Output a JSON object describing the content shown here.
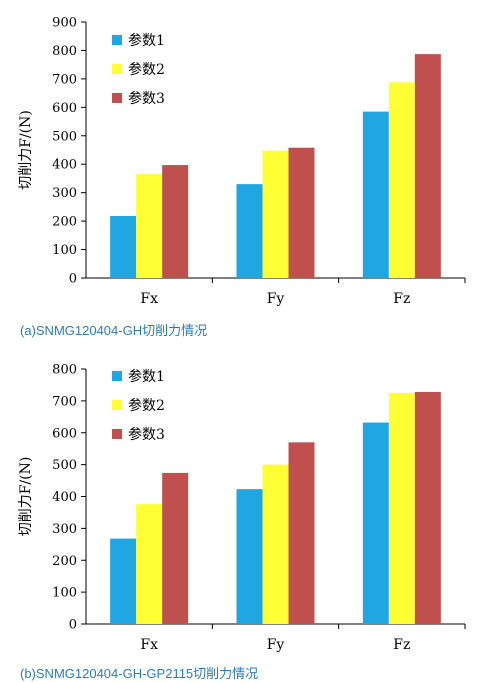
{
  "chart_data": [
    {
      "type": "bar",
      "categories": [
        "Fx",
        "Fy",
        "Fz"
      ],
      "series": [
        {
          "name": "参数1",
          "values": [
            218,
            330,
            585
          ]
        },
        {
          "name": "参数2",
          "values": [
            365,
            447,
            688
          ]
        },
        {
          "name": "参数3",
          "values": [
            397,
            458,
            787
          ]
        }
      ],
      "ylabel": "切削力F/(N)",
      "yticks": [
        0,
        100,
        200,
        300,
        400,
        500,
        600,
        700,
        800,
        900
      ],
      "ylim": [
        0,
        900
      ],
      "legend": "top-left",
      "grid": false,
      "caption": "(a)SNMG120404-GH切削力情况"
    },
    {
      "type": "bar",
      "categories": [
        "Fx",
        "Fy",
        "Fz"
      ],
      "series": [
        {
          "name": "参数1",
          "values": [
            268,
            423,
            632
          ]
        },
        {
          "name": "参数2",
          "values": [
            376,
            500,
            725
          ]
        },
        {
          "name": "参数3",
          "values": [
            474,
            570,
            728
          ]
        }
      ],
      "ylabel": "切削力F/(N)",
      "yticks": [
        0,
        100,
        200,
        300,
        400,
        500,
        600,
        700,
        800
      ],
      "ylim": [
        0,
        800
      ],
      "legend": "top-left",
      "grid": false,
      "caption": "(b)SNMG120404-GH-GP2115切削力情况"
    }
  ],
  "colors": {
    "series": [
      "#1fa6e3",
      "#ffff33",
      "#c0504d"
    ],
    "caption": "#2a7bbd"
  }
}
